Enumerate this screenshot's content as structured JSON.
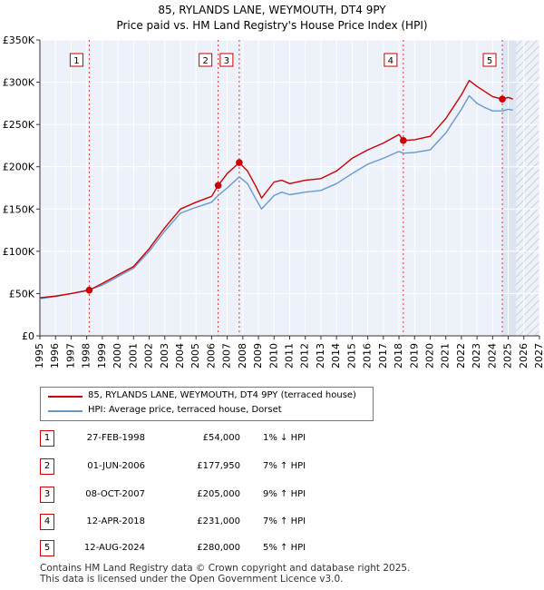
{
  "header": {
    "title": "85, RYLANDS LANE, WEYMOUTH, DT4 9PY",
    "subtitle": "Price paid vs. HM Land Registry's House Price Index (HPI)"
  },
  "legend": {
    "price_label": "85, RYLANDS LANE, WEYMOUTH, DT4 9PY (terraced house)",
    "hpi_label": "HPI: Average price, terraced house, Dorset"
  },
  "colors": {
    "price_line": "#cc0000",
    "hpi_line": "#6699cc",
    "plot_bg": "#edf1f9",
    "highlight_bg": "#dde5f2",
    "grid": "#ffffff",
    "marker_line": "#dd3333"
  },
  "sales": [
    {
      "num": "1",
      "date": "27-FEB-1998",
      "price": "£54,000",
      "hpi": "1% ↓ HPI"
    },
    {
      "num": "2",
      "date": "01-JUN-2006",
      "price": "£177,950",
      "hpi": "7% ↑ HPI"
    },
    {
      "num": "3",
      "date": "08-OCT-2007",
      "price": "£205,000",
      "hpi": "9% ↑ HPI"
    },
    {
      "num": "4",
      "date": "12-APR-2018",
      "price": "£231,000",
      "hpi": "7% ↑ HPI"
    },
    {
      "num": "5",
      "date": "12-AUG-2024",
      "price": "£280,000",
      "hpi": "5% ↑ HPI"
    }
  ],
  "footer": {
    "line1": "Contains HM Land Registry data © Crown copyright and database right 2025.",
    "line2": "This data is licensed under the Open Government Licence v3.0."
  },
  "chart_data": {
    "type": "line",
    "title": "85, RYLANDS LANE, WEYMOUTH, DT4 9PY",
    "subtitle": "Price paid vs. HM Land Registry's House Price Index (HPI)",
    "xlabel": "",
    "ylabel": "",
    "xlim": [
      1995,
      2027
    ],
    "ylim": [
      0,
      350000
    ],
    "y_ticks": [
      0,
      50000,
      100000,
      150000,
      200000,
      250000,
      300000,
      350000
    ],
    "y_tick_labels": [
      "£0",
      "£50K",
      "£100K",
      "£150K",
      "£200K",
      "£250K",
      "£300K",
      "£350K"
    ],
    "x_ticks": [
      1995,
      1996,
      1997,
      1998,
      1999,
      2000,
      2001,
      2002,
      2003,
      2004,
      2005,
      2006,
      2007,
      2008,
      2009,
      2010,
      2011,
      2012,
      2013,
      2014,
      2015,
      2016,
      2017,
      2018,
      2019,
      2020,
      2021,
      2022,
      2023,
      2024,
      2025,
      2026,
      2027
    ],
    "grid": true,
    "highlight_range": [
      2024.62,
      2025.5
    ],
    "hatched_range": [
      2025.5,
      2027
    ],
    "series": [
      {
        "name": "85, RYLANDS LANE, WEYMOUTH, DT4 9PY (terraced house)",
        "x": [
          1995,
          1996,
          1997,
          1998.16,
          1999,
          2000,
          2001,
          2002,
          2003,
          2004,
          2005,
          2006,
          2006.42,
          2007,
          2007.77,
          2008.3,
          2008.8,
          2009.2,
          2010,
          2010.5,
          2011,
          2012,
          2013,
          2014,
          2015,
          2016,
          2017,
          2018,
          2018.28,
          2019,
          2020,
          2021,
          2022,
          2022.5,
          2023,
          2023.5,
          2024,
          2024.62,
          2025,
          2025.3
        ],
        "values": [
          45000,
          47000,
          50000,
          54000,
          62000,
          72000,
          82000,
          103000,
          128000,
          150000,
          158000,
          165000,
          177950,
          192000,
          205000,
          195000,
          178000,
          163000,
          182000,
          184000,
          180000,
          184000,
          186000,
          195000,
          210000,
          220000,
          228000,
          238000,
          231000,
          232000,
          236000,
          257000,
          285000,
          302000,
          295000,
          289000,
          283000,
          280000,
          282000,
          280000
        ]
      },
      {
        "name": "HPI: Average price, terraced house, Dorset",
        "x": [
          1995,
          1996,
          1997,
          1998.16,
          1999,
          2000,
          2001,
          2002,
          2003,
          2004,
          2005,
          2006,
          2006.42,
          2007,
          2007.77,
          2008.3,
          2008.8,
          2009.2,
          2010,
          2010.5,
          2011,
          2012,
          2013,
          2014,
          2015,
          2016,
          2017,
          2018,
          2018.28,
          2019,
          2020,
          2021,
          2022,
          2022.5,
          2023,
          2023.5,
          2024,
          2024.62,
          2025,
          2025.3
        ],
        "values": [
          44000,
          46500,
          50000,
          54500,
          60000,
          70000,
          80000,
          100000,
          124000,
          145000,
          152000,
          158000,
          166000,
          175000,
          188000,
          180000,
          163000,
          150000,
          166000,
          170000,
          167000,
          170000,
          172000,
          180000,
          192000,
          203000,
          210000,
          218000,
          216000,
          217000,
          220000,
          240000,
          268000,
          284000,
          275000,
          270000,
          266000,
          266000,
          268000,
          267000
        ]
      }
    ],
    "sales": [
      {
        "label": "1",
        "x": 1998.16,
        "value": 54000
      },
      {
        "label": "2",
        "x": 2006.42,
        "value": 177950
      },
      {
        "label": "3",
        "x": 2007.77,
        "value": 205000
      },
      {
        "label": "4",
        "x": 2018.28,
        "value": 231000
      },
      {
        "label": "5",
        "x": 2024.62,
        "value": 280000
      }
    ]
  }
}
